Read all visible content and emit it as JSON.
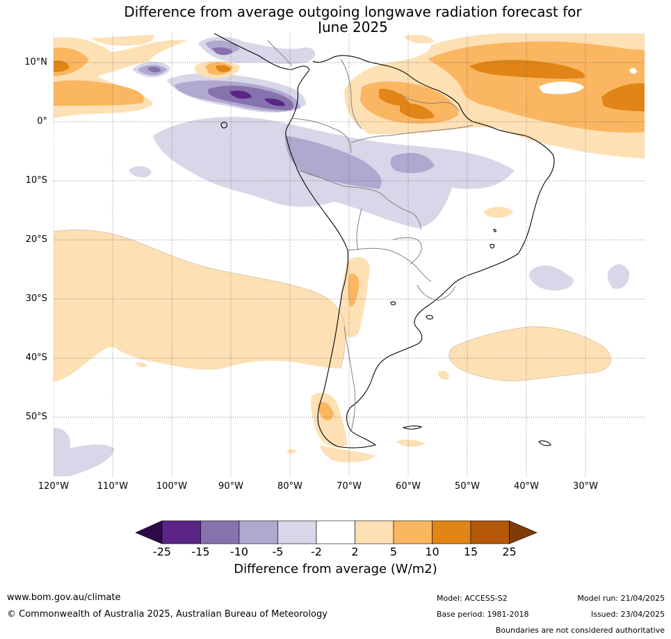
{
  "title": {
    "line1": "Difference from average outgoing longwave radiation forecast for",
    "line2": "June 2025"
  },
  "map": {
    "lat_labels": [
      "10°N",
      "0°",
      "10°S",
      "20°S",
      "30°S",
      "40°S",
      "50°S"
    ],
    "lon_labels": [
      "120°W",
      "110°W",
      "100°W",
      "90°W",
      "80°W",
      "70°W",
      "60°W",
      "50°W",
      "40°W",
      "30°W"
    ]
  },
  "colorbar": {
    "ticks": [
      "-25",
      "-15",
      "-10",
      "-5",
      "-2",
      "2",
      "5",
      "10",
      "15",
      "25"
    ],
    "colors": [
      "#2e0a4a",
      "#5a2586",
      "#8673ad",
      "#b1a8d0",
      "#d7d7e9",
      "#ffffff",
      "#fee0b5",
      "#fbb661",
      "#e08516",
      "#b35808",
      "#7f3b08"
    ],
    "label": "Difference from average (W/m2)"
  },
  "footer": {
    "url": "www.bom.gov.au/climate",
    "copyright": "© Commonwealth of Australia 2025, Australian Bureau of Meteorology",
    "model": "Model: ACCESS-S2",
    "base_period": "Base period: 1981-2018",
    "model_run": "Model run: 21/04/2025",
    "issued": "Issued: 23/04/2025",
    "boundaries_note": "Boundaries are not considered authoritative"
  }
}
